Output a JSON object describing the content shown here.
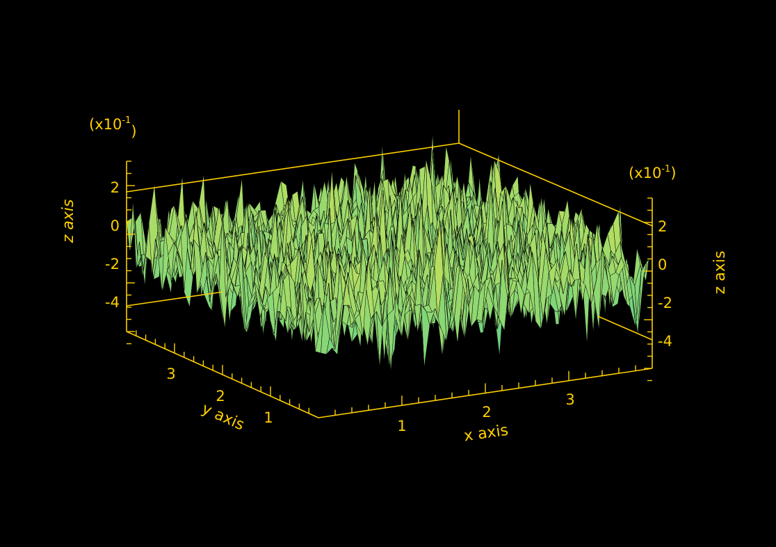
{
  "colors": {
    "background": "#000000",
    "axis": "#ffd000",
    "surface_high": "#e6e64a",
    "surface_low": "#2ec8a0",
    "wire": "#000000"
  },
  "chart_data": {
    "type": "surface",
    "title": "",
    "xlabel": "x axis",
    "ylabel": "y axis",
    "zlabel": "z axis",
    "xlim": [
      0,
      4
    ],
    "ylim": [
      0,
      4
    ],
    "zlim": [
      -0.4,
      0.3
    ],
    "z_multiplier": "(x10-1)",
    "z_multiplier_base": "(x10",
    "z_multiplier_exp": "-1",
    "z_multiplier_close": ")",
    "x_ticks": [
      "1",
      "2",
      "3"
    ],
    "y_ticks": [
      "1",
      "2",
      "3"
    ],
    "z_ticks_left": [
      "2",
      "0",
      "-2",
      "-4"
    ],
    "z_ticks_right": [
      "2",
      "0",
      "-2",
      "-4"
    ],
    "surface_description_values": {
      "z_mean": -0.02,
      "z_min": -0.45,
      "z_max": 0.32,
      "noise": "random"
    },
    "grid": false,
    "legend": "none"
  }
}
